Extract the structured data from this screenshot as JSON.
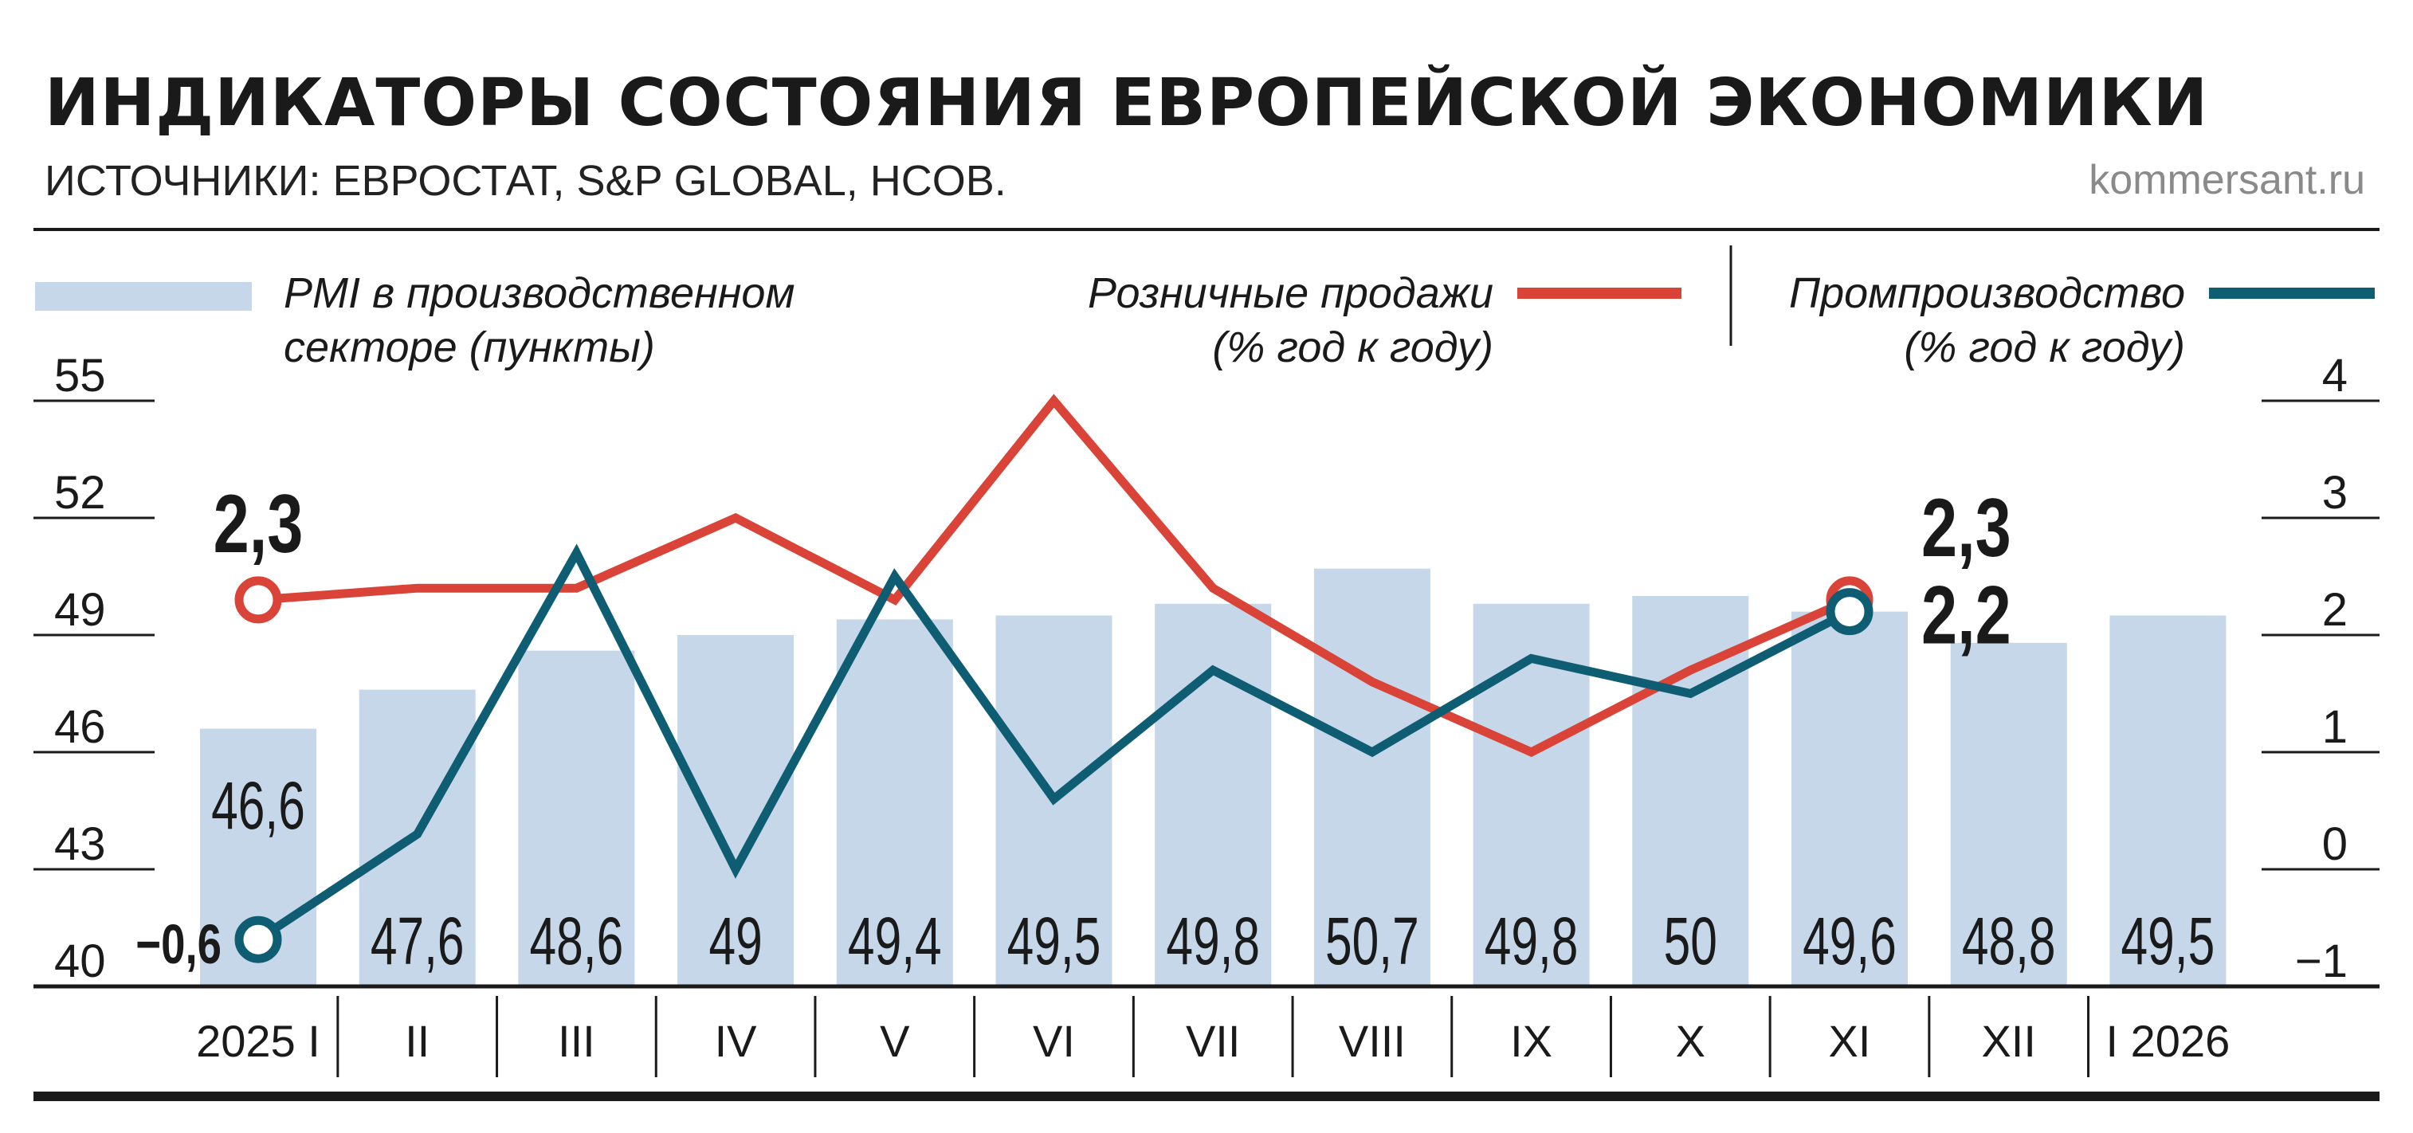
{
  "title": "ИНДИКАТОРЫ СОСТОЯНИЯ ЕВРОПЕЙСКОЙ ЭКОНОМИКИ",
  "subtitle": "ИСТОЧНИКИ: ЕВРОСТАТ, S&P GLOBAL, HCOB.",
  "brand": "kommersant.ru",
  "legend": {
    "pmi": [
      "PMI в производственном",
      "секторе (пункты)"
    ],
    "retail": [
      "Розничные продажи",
      "(% год к году)"
    ],
    "industry": [
      "Промпроизводство",
      "(% год к году)"
    ]
  },
  "colors": {
    "bar": "#c5d7e8",
    "retail": "#d94338",
    "industry": "#0f5d73",
    "text": "#1a1a1a"
  },
  "chart_data": {
    "type": "bar+line",
    "categories": [
      "2025 I",
      "II",
      "III",
      "IV",
      "V",
      "VI",
      "VII",
      "VIII",
      "IX",
      "X",
      "XI",
      "XII",
      "I 2026"
    ],
    "left_axis": {
      "label": "PMI",
      "ylim": [
        40,
        55
      ],
      "ticks": [
        "55",
        "52",
        "49",
        "46",
        "43",
        "40"
      ]
    },
    "right_axis": {
      "label": "% год к году",
      "ylim": [
        -1,
        4
      ],
      "ticks": [
        "4",
        "3",
        "2",
        "1",
        "0",
        "−1"
      ]
    },
    "series": [
      {
        "name": "PMI в производственном секторе (пункты)",
        "type": "bar",
        "axis": "left",
        "values": [
          46.6,
          47.6,
          48.6,
          49,
          49.4,
          49.5,
          49.8,
          50.7,
          49.8,
          50,
          49.6,
          48.8,
          49.5
        ],
        "labels": [
          "46,6",
          "47,6",
          "48,6",
          "49",
          "49,4",
          "49,5",
          "49,8",
          "50,7",
          "49,8",
          "50",
          "49,6",
          "48,8",
          "49,5"
        ]
      },
      {
        "name": "Розничные продажи (% год к году)",
        "type": "line",
        "axis": "right",
        "values": [
          2.3,
          2.4,
          2.4,
          3.0,
          2.3,
          4.0,
          2.4,
          1.6,
          1.0,
          1.7,
          2.3,
          null,
          null
        ],
        "annotations": [
          {
            "index": 0,
            "label": "2,3"
          },
          {
            "index": 10,
            "label": "2,3"
          }
        ]
      },
      {
        "name": "Промпроизводство (% год к году)",
        "type": "line",
        "axis": "right",
        "values": [
          -0.6,
          0.3,
          2.7,
          0.0,
          2.5,
          0.6,
          1.7,
          1.0,
          1.8,
          1.5,
          2.2,
          null,
          null
        ],
        "annotations": [
          {
            "index": 0,
            "label": "−0,6"
          },
          {
            "index": 10,
            "label": "2,2"
          }
        ]
      }
    ]
  }
}
